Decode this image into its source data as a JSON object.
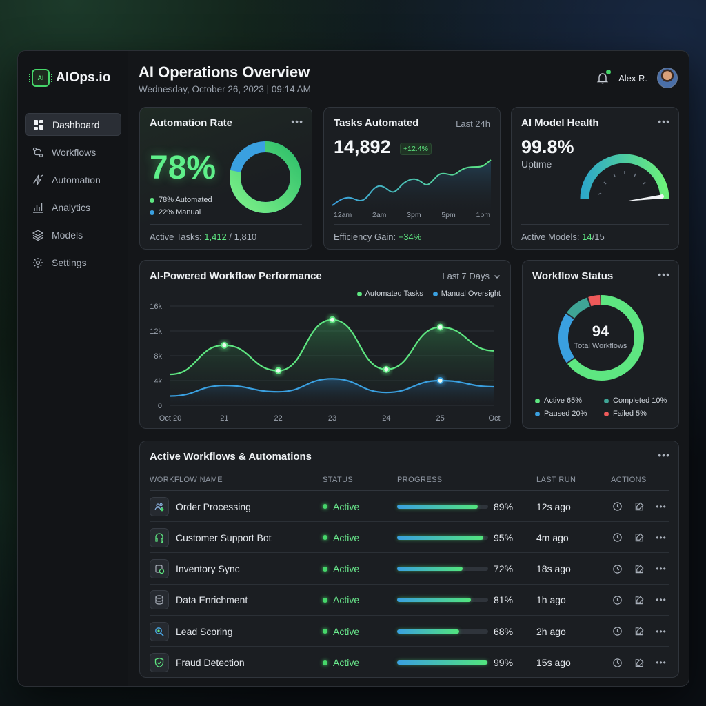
{
  "app": {
    "name": "AIOps.io",
    "logo_text": "AI"
  },
  "sidebar": {
    "items": [
      {
        "label": "Dashboard",
        "icon": "dashboard-icon",
        "active": true
      },
      {
        "label": "Workflows",
        "icon": "workflow-icon",
        "active": false
      },
      {
        "label": "Automation",
        "icon": "automation-icon",
        "active": false
      },
      {
        "label": "Analytics",
        "icon": "analytics-icon",
        "active": false
      },
      {
        "label": "Models",
        "icon": "layers-icon",
        "active": false
      },
      {
        "label": "Settings",
        "icon": "gear-icon",
        "active": false
      }
    ]
  },
  "header": {
    "title": "AI Operations Overview",
    "date": "Wednesday, October 26, 2023 | 09:14 AM",
    "user_name": "Alex R.",
    "notifications": true
  },
  "automation_rate": {
    "title": "Automation Rate",
    "value": "78%",
    "automated_pct": 78,
    "legend_automated": "78% Automated",
    "legend_manual": "22% Manual",
    "footer_label": "Active Tasks:",
    "active_tasks": "1,412",
    "total_tasks": "/ 1,810"
  },
  "tasks_automated": {
    "title": "Tasks Automated",
    "period": "Last 24h",
    "value": "14,892",
    "change": "+12.4%",
    "x_labels": [
      "12am",
      "2am",
      "3pm",
      "5pm",
      "1pm"
    ],
    "footer_label": "Efficiency Gain:",
    "efficiency": "+34%"
  },
  "model_health": {
    "title": "AI Model Health",
    "value": "99.8%",
    "subtitle": "Uptime",
    "footer_label": "Active Models:",
    "active_models": "14",
    "total_models": "/15"
  },
  "performance": {
    "title": "AI-Powered Workflow Performance",
    "period": "Last 7 Days",
    "legend": [
      "Automated Tasks",
      "Manual Oversight"
    ]
  },
  "chart_data": {
    "type": "area",
    "categories": [
      "Oct 20",
      "21",
      "22",
      "23",
      "24",
      "25",
      "Oct"
    ],
    "y_ticks": [
      "16k",
      "12k",
      "8k",
      "4k",
      "0"
    ],
    "ylim": [
      0,
      16000
    ],
    "series": [
      {
        "name": "Automated Tasks",
        "color": "#5ee681",
        "values": [
          5000,
          9700,
          5600,
          13800,
          5800,
          12600,
          8800
        ]
      },
      {
        "name": "Manual Oversight",
        "color": "#3aa0e0",
        "values": [
          1500,
          3200,
          2200,
          4300,
          2100,
          4000,
          3000
        ]
      }
    ]
  },
  "workflow_status": {
    "title": "Workflow Status",
    "total": "94",
    "total_label": "Total Workflows",
    "segments": [
      {
        "label": "Active 65%",
        "pct": 65,
        "color": "#5ee681"
      },
      {
        "label": "Paused 20%",
        "pct": 20,
        "color": "#3aa0e0"
      },
      {
        "label": "Completed 10%",
        "pct": 10,
        "color": "#3fa596"
      },
      {
        "label": "Failed 5%",
        "pct": 5,
        "color": "#ef5a5a"
      }
    ]
  },
  "workflows_table": {
    "title": "Active Workflows & Automations",
    "columns": [
      "WORKFLOW NAME",
      "STATUS",
      "PROGRESS",
      "LAST RUN",
      "ACTIONS"
    ],
    "rows": [
      {
        "name": "Order Processing",
        "icon": "users-icon",
        "status": "Active",
        "progress": 89,
        "progress_label": "89%",
        "last_run": "12s ago"
      },
      {
        "name": "Customer Support Bot",
        "icon": "headset-icon",
        "status": "Active",
        "progress": 95,
        "progress_label": "95%",
        "last_run": "4m ago"
      },
      {
        "name": "Inventory Sync",
        "icon": "sync-icon",
        "status": "Active",
        "progress": 72,
        "progress_label": "72%",
        "last_run": "18s ago"
      },
      {
        "name": "Data Enrichment",
        "icon": "database-icon",
        "status": "Active",
        "progress": 81,
        "progress_label": "81%",
        "last_run": "1h ago"
      },
      {
        "name": "Lead Scoring",
        "icon": "search-icon",
        "status": "Active",
        "progress": 68,
        "progress_label": "68%",
        "last_run": "2h ago"
      },
      {
        "name": "Fraud Detection",
        "icon": "shield-icon",
        "status": "Active",
        "progress": 99,
        "progress_label": "99%",
        "last_run": "15s ago"
      }
    ]
  }
}
